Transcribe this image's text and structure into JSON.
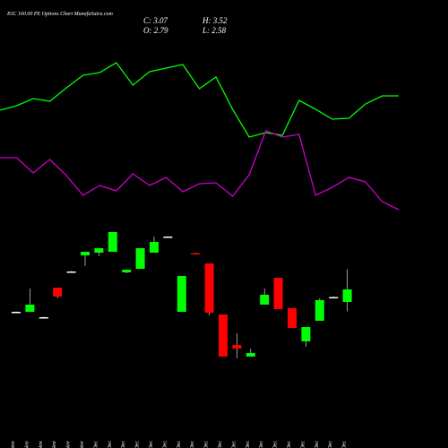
{
  "chart_data": {
    "type": "candlestick",
    "title": "IOC 160.00 PE Options Chart MunafaSutra.com",
    "ohlc_labels": [
      "C: 3.07",
      "H: 3.52",
      "O: 2.79",
      "L: 2.58"
    ],
    "categories": [
      "20 Nov",
      "21 Nov",
      "24 Nov",
      "26 Nov",
      "27 Nov",
      "28 Nov",
      "01 Dec",
      "02 Dec",
      "03 Dec",
      "04 Dec",
      "05 Dec",
      "08 Dec",
      "09 Dec",
      "10 Dec",
      "11 Dec",
      "12 Dec",
      "15 Dec",
      "16 Dec",
      "17 Dec",
      "18 Dec",
      "19 Dec",
      "22 Dec",
      "23 Dec",
      "24 Dec",
      "26 Dec"
    ],
    "open": [
      2.57,
      2.57,
      2.45,
      3.11,
      3.47,
      3.83,
      3.89,
      3.91,
      3.45,
      3.53,
      3.89,
      4.25,
      2.57,
      3.88,
      3.65,
      2.51,
      1.83,
      1.57,
      2.73,
      3.33,
      2.65,
      1.91,
      2.37,
      2.9,
      2.79
    ],
    "high": [
      2.58,
      3.09,
      2.46,
      3.11,
      3.48,
      3.91,
      3.99,
      4.35,
      3.51,
      3.99,
      4.25,
      4.26,
      3.37,
      3.89,
      3.65,
      2.51,
      2.09,
      1.75,
      3.09,
      3.33,
      2.65,
      2.23,
      2.87,
      2.91,
      3.52
    ],
    "low": [
      2.56,
      2.57,
      2.44,
      2.87,
      3.46,
      3.59,
      3.81,
      3.91,
      3.43,
      3.53,
      3.89,
      4.24,
      2.57,
      3.86,
      2.49,
      1.57,
      1.53,
      1.57,
      2.73,
      2.63,
      2.21,
      1.79,
      2.37,
      2.89,
      2.58
    ],
    "close": [
      2.57,
      2.73,
      2.45,
      2.91,
      3.47,
      3.91,
      3.99,
      4.35,
      3.51,
      3.99,
      4.13,
      4.25,
      3.37,
      3.86,
      2.55,
      1.57,
      1.75,
      1.65,
      2.95,
      2.63,
      2.21,
      2.23,
      2.83,
      2.9,
      3.07
    ],
    "up_color": "#00ff00",
    "down_color": "#ff0000",
    "lines": [
      {
        "color": "#00ff00",
        "values": [
          68.5,
          71,
          75,
          73.5,
          81,
          88,
          89.5,
          95,
          82.5,
          90,
          92,
          94,
          80.5,
          87,
          69,
          53.5,
          56,
          54.5,
          74,
          69,
          63.5,
          64,
          72,
          76.5,
          76.5
        ]
      },
      {
        "color": "#cc00cc",
        "values": [
          42,
          42,
          33.5,
          41,
          32,
          21,
          26.5,
          23.5,
          33,
          26.5,
          31,
          23,
          27.5,
          28,
          20.5,
          32.5,
          57,
          53.5,
          55,
          21,
          25.5,
          31,
          28.5,
          17.5,
          13
        ]
      }
    ]
  }
}
